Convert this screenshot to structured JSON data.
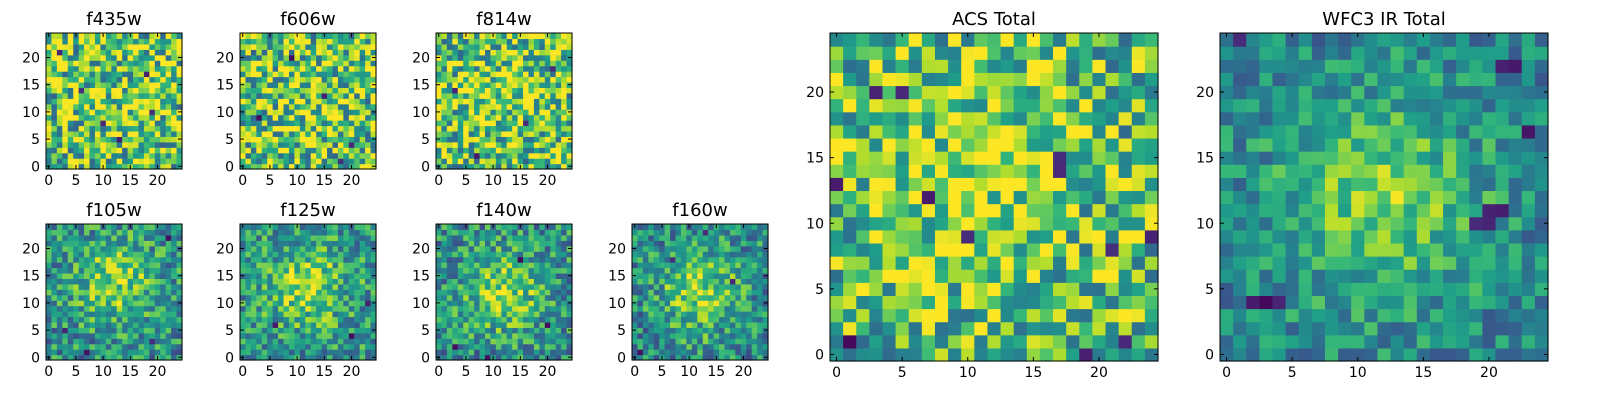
{
  "chart_data": [
    {
      "type": "heatmap",
      "title": "f435w",
      "colormap": "viridis",
      "size": 25,
      "xticks": [
        0,
        5,
        10,
        15,
        20
      ],
      "yticks": [
        0,
        5,
        10,
        15,
        20
      ],
      "xlim": [
        0,
        25
      ],
      "ylim": [
        0,
        25
      ],
      "seed": 11,
      "noise": 0.85,
      "blob_strength": 0.15,
      "blob_center": [
        12,
        12
      ],
      "blob_sigma": 6,
      "base": 0.72,
      "dark_pixels": [
        [
          10,
          8
        ],
        [
          19,
          10
        ],
        [
          6,
          14
        ],
        [
          18,
          17
        ],
        [
          13,
          5
        ],
        [
          2,
          21
        ]
      ]
    },
    {
      "type": "heatmap",
      "title": "f606w",
      "colormap": "viridis",
      "size": 25,
      "xticks": [
        0,
        5,
        10,
        15,
        20
      ],
      "yticks": [
        0,
        5,
        10,
        15,
        20
      ],
      "xlim": [
        0,
        25
      ],
      "ylim": [
        0,
        25
      ],
      "seed": 23,
      "noise": 0.85,
      "blob_strength": 0.15,
      "blob_center": [
        12,
        12
      ],
      "blob_sigma": 6,
      "base": 0.72,
      "dark_pixels": [
        [
          15,
          13
        ],
        [
          20,
          4
        ],
        [
          3,
          9
        ],
        [
          9,
          20
        ],
        [
          18,
          1
        ]
      ]
    },
    {
      "type": "heatmap",
      "title": "f814w",
      "colormap": "viridis",
      "size": 25,
      "xticks": [
        0,
        5,
        10,
        15,
        20
      ],
      "yticks": [
        0,
        5,
        10,
        15,
        20
      ],
      "xlim": [
        0,
        25
      ],
      "ylim": [
        0,
        25
      ],
      "seed": 37,
      "noise": 0.8,
      "blob_strength": 0.25,
      "blob_center": [
        12,
        13
      ],
      "blob_sigma": 6,
      "base": 0.7,
      "dark_pixels": [
        [
          7,
          2
        ],
        [
          21,
          18
        ],
        [
          3,
          14
        ],
        [
          16,
          8
        ]
      ]
    },
    {
      "type": "heatmap",
      "title": "f105w",
      "colormap": "viridis",
      "size": 25,
      "xticks": [
        0,
        5,
        10,
        15,
        20
      ],
      "yticks": [
        0,
        5,
        10,
        15,
        20
      ],
      "xlim": [
        0,
        25
      ],
      "ylim": [
        0,
        25
      ],
      "seed": 41,
      "noise": 0.55,
      "blob_strength": 0.6,
      "blob_center": [
        12,
        14
      ],
      "blob_sigma": 5,
      "base": 0.5,
      "dark_pixels": [
        [
          22,
          22
        ],
        [
          3,
          5
        ],
        [
          7,
          1
        ],
        [
          19,
          3
        ]
      ]
    },
    {
      "type": "heatmap",
      "title": "f125w",
      "colormap": "viridis",
      "size": 25,
      "xticks": [
        0,
        5,
        10,
        15,
        20
      ],
      "yticks": [
        0,
        5,
        10,
        15,
        20
      ],
      "xlim": [
        0,
        25
      ],
      "ylim": [
        0,
        25
      ],
      "seed": 53,
      "noise": 0.55,
      "blob_strength": 0.6,
      "blob_center": [
        12,
        13
      ],
      "blob_sigma": 5,
      "base": 0.52,
      "dark_pixels": [
        [
          20,
          4
        ],
        [
          6,
          6
        ],
        [
          23,
          10
        ]
      ]
    },
    {
      "type": "heatmap",
      "title": "f140w",
      "colormap": "viridis",
      "size": 25,
      "xticks": [
        0,
        5,
        10,
        15,
        20
      ],
      "yticks": [
        0,
        5,
        10,
        15,
        20
      ],
      "xlim": [
        0,
        25
      ],
      "ylim": [
        0,
        25
      ],
      "seed": 67,
      "noise": 0.55,
      "blob_strength": 0.6,
      "blob_center": [
        12,
        12
      ],
      "blob_sigma": 5,
      "base": 0.5,
      "dark_pixels": [
        [
          3,
          2
        ],
        [
          15,
          18
        ],
        [
          20,
          6
        ],
        [
          9,
          0
        ]
      ]
    },
    {
      "type": "heatmap",
      "title": "f160w",
      "colormap": "viridis",
      "size": 25,
      "xticks": [
        0,
        5,
        10,
        15,
        20
      ],
      "yticks": [
        0,
        5,
        10,
        15,
        20
      ],
      "xlim": [
        0,
        25
      ],
      "ylim": [
        0,
        25
      ],
      "seed": 79,
      "noise": 0.55,
      "blob_strength": 0.65,
      "blob_center": [
        12,
        12
      ],
      "blob_sigma": 5,
      "base": 0.48,
      "dark_pixels": [
        [
          1,
          1
        ],
        [
          7,
          18
        ],
        [
          18,
          14
        ],
        [
          13,
          23
        ]
      ]
    },
    {
      "type": "heatmap",
      "title": "ACS Total",
      "colormap": "viridis",
      "size": 25,
      "xticks": [
        0,
        5,
        10,
        15,
        20
      ],
      "yticks": [
        0,
        5,
        10,
        15,
        20
      ],
      "xlim": [
        0,
        25
      ],
      "ylim": [
        0,
        25
      ],
      "seed": 97,
      "noise": 0.7,
      "blob_strength": 0.3,
      "blob_center": [
        10,
        14
      ],
      "blob_sigma": 7,
      "base": 0.66,
      "dark_pixels": [
        [
          3,
          20
        ],
        [
          5,
          20
        ],
        [
          17,
          15
        ],
        [
          17,
          14
        ],
        [
          7,
          12
        ],
        [
          0,
          13
        ],
        [
          10,
          9
        ],
        [
          24,
          9
        ],
        [
          21,
          8
        ],
        [
          19,
          0
        ],
        [
          22,
          1
        ],
        [
          1,
          1
        ]
      ]
    },
    {
      "type": "heatmap",
      "title": "WFC3 IR Total",
      "colormap": "viridis",
      "size": 25,
      "xticks": [
        0,
        5,
        10,
        15,
        20
      ],
      "yticks": [
        0,
        5,
        10,
        15,
        20
      ],
      "xlim": [
        0,
        25
      ],
      "ylim": [
        0,
        25
      ],
      "seed": 113,
      "noise": 0.42,
      "blob_strength": 0.62,
      "blob_center": [
        12,
        12
      ],
      "blob_sigma": 5.5,
      "base": 0.45,
      "dark_pixels": [
        [
          2,
          4
        ],
        [
          3,
          4
        ],
        [
          4,
          4
        ],
        [
          20,
          11
        ],
        [
          21,
          11
        ],
        [
          20,
          10
        ],
        [
          21,
          22
        ],
        [
          22,
          22
        ],
        [
          23,
          17
        ],
        [
          1,
          24
        ],
        [
          19,
          10
        ]
      ]
    }
  ]
}
